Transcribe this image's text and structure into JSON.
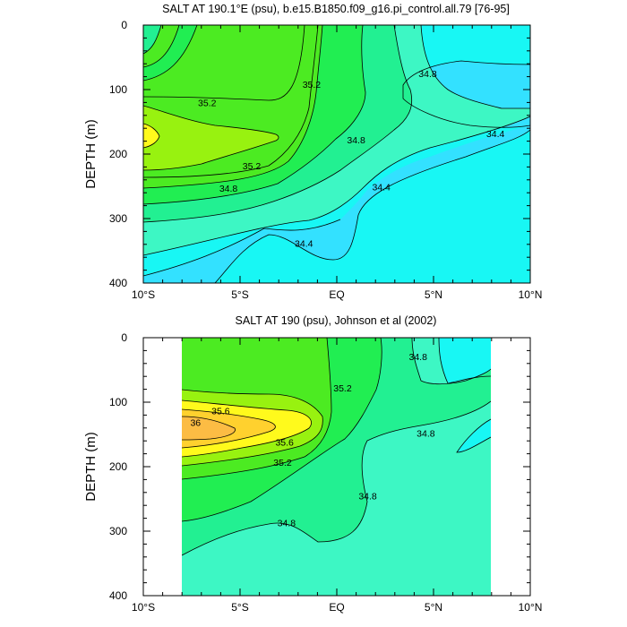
{
  "chart_data": [
    {
      "type": "contour",
      "title": "SALT AT 190.1°E (psu), b.e15.B1850.f09_g16.pi_control.all.79 [76-95]",
      "ylabel": "DEPTH (m)",
      "xlabel": "",
      "xlim": [
        -10,
        10
      ],
      "ylim": [
        400,
        0
      ],
      "x_ticks": [
        {
          "value": -10,
          "label": "10°S"
        },
        {
          "value": -5,
          "label": "5°S"
        },
        {
          "value": 0,
          "label": "EQ"
        },
        {
          "value": 5,
          "label": "5°N"
        },
        {
          "value": 10,
          "label": "10°N"
        }
      ],
      "y_ticks": [
        0,
        100,
        200,
        300,
        400
      ],
      "contour_levels": [
        34.4,
        34.6,
        34.8,
        35.0,
        35.2,
        35.4,
        35.6,
        35.8,
        36.0
      ],
      "contour_labels": [
        {
          "text": "35.2",
          "lat": -6.7,
          "depth": 120
        },
        {
          "text": "35.2",
          "lat": -1.3,
          "depth": 92
        },
        {
          "text": "35.2",
          "lat": -4.4,
          "depth": 218
        },
        {
          "text": "34.8",
          "lat": -5.6,
          "depth": 253
        },
        {
          "text": "34.8",
          "lat": 1.0,
          "depth": 178
        },
        {
          "text": "34.8",
          "lat": 4.7,
          "depth": 75
        },
        {
          "text": "34.4",
          "lat": -1.7,
          "depth": 338
        },
        {
          "text": "34.4",
          "lat": 2.3,
          "depth": 251
        },
        {
          "text": "34.4",
          "lat": 8.2,
          "depth": 168
        }
      ]
    },
    {
      "type": "contour",
      "title": "SALT AT 190 (psu), Johnson et al (2002)",
      "ylabel": "DEPTH (m)",
      "xlabel": "",
      "xlim": [
        -10,
        10
      ],
      "ylim": [
        400,
        0
      ],
      "data_lat_range": [
        -8,
        8
      ],
      "x_ticks": [
        {
          "value": -10,
          "label": "10°S"
        },
        {
          "value": -5,
          "label": "5°S"
        },
        {
          "value": 0,
          "label": "EQ"
        },
        {
          "value": 5,
          "label": "5°N"
        },
        {
          "value": 10,
          "label": "10°N"
        }
      ],
      "y_ticks": [
        0,
        100,
        200,
        300,
        400
      ],
      "contour_levels": [
        34.4,
        34.6,
        34.8,
        35.0,
        35.2,
        35.4,
        35.6,
        35.8,
        36.0
      ],
      "contour_labels": [
        {
          "text": "36",
          "lat": -7.3,
          "depth": 131
        },
        {
          "text": "35.6",
          "lat": -6.0,
          "depth": 113
        },
        {
          "text": "35.6",
          "lat": -2.7,
          "depth": 162
        },
        {
          "text": "35.2",
          "lat": -2.8,
          "depth": 193
        },
        {
          "text": "35.2",
          "lat": 0.3,
          "depth": 78
        },
        {
          "text": "34.8",
          "lat": 4.2,
          "depth": 29
        },
        {
          "text": "34.8",
          "lat": 4.6,
          "depth": 148
        },
        {
          "text": "34.8",
          "lat": 1.6,
          "depth": 245
        },
        {
          "text": "34.8",
          "lat": -2.6,
          "depth": 287
        }
      ]
    }
  ],
  "colors": {
    "lt_34_4": "#33e1ff",
    "c34_4_34_6": "#18f7f4",
    "c34_6_34_8": "#3df7c4",
    "c34_8_35_0": "#22f092",
    "c35_0_35_2": "#21ee52",
    "c35_2_35_4": "#4ceb22",
    "c35_4_35_6": "#98f210",
    "c35_6_35_8": "#fffa1c",
    "c35_8_36_0": "#ffd12e",
    "gt_36_0": "#fcbc44"
  }
}
